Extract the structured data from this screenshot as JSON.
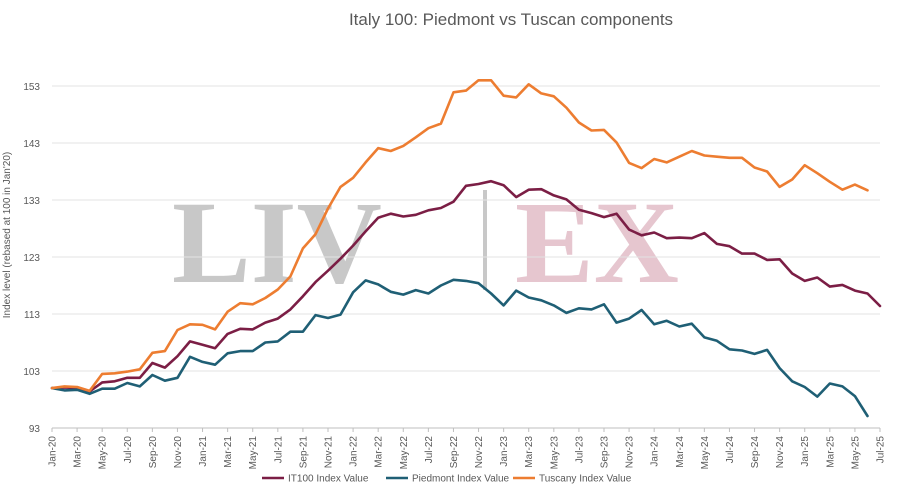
{
  "chart_data": {
    "type": "line",
    "title": "Italy 100: Piedmont vs Tuscan components",
    "ylabel": "Index level (rebased at 100 in Jan'20)",
    "xlabel": "",
    "ylim": [
      93,
      153
    ],
    "yticks": [
      93,
      103,
      113,
      123,
      133,
      143,
      153
    ],
    "xlim": [
      "Jan-20",
      "Jul-25"
    ],
    "xticks": [
      "Jan-20",
      "Mar-20",
      "May-20",
      "Jul-20",
      "Sep-20",
      "Nov-20",
      "Jan-21",
      "Mar-21",
      "May-21",
      "Jul-21",
      "Sep-21",
      "Nov-21",
      "Jan-22",
      "Mar-22",
      "May-22",
      "Jul-22",
      "Sep-22",
      "Nov-22",
      "Jan-23",
      "Mar-23",
      "May-23",
      "Jul-23",
      "Sep-23",
      "Nov-23",
      "Jan-24",
      "Mar-24",
      "May-24",
      "Jul-24",
      "Sep-24",
      "Nov-24",
      "Jan-25",
      "Mar-25",
      "May-25",
      "Jul-25"
    ],
    "grid": "horizontal",
    "legend_position": "bottom",
    "watermark": [
      "LIV",
      "EX"
    ],
    "series": [
      {
        "name": "IT100 Index Value",
        "color": "#7b1e45",
        "values": [
          100,
          100.1,
          100,
          99.4,
          101,
          101.2,
          101.8,
          101.8,
          104.4,
          103.6,
          105.6,
          108.2,
          107.6,
          107,
          109.5,
          110.4,
          110.3,
          111.5,
          112.2,
          113.8,
          116.1,
          118.6,
          120.6,
          122.7,
          125,
          127.5,
          129.9,
          130.6,
          130.1,
          130.4,
          131.2,
          131.6,
          132.7,
          135.5,
          135.8,
          136.3,
          135.6,
          133.5,
          134.8,
          134.9,
          133.8,
          133.1,
          131.3,
          130.7,
          130,
          130.6,
          127.8,
          126.8,
          127.3,
          126.3,
          126.4,
          126.3,
          127.2,
          125.3,
          124.9,
          123.6,
          123.6,
          122.5,
          122.6,
          120.1,
          118.8,
          119.4,
          117.8,
          118.1,
          117.1,
          116.6,
          114.4
        ]
      },
      {
        "name": "Piedmont Index Value",
        "color": "#1f5f75",
        "values": [
          100,
          99.6,
          99.7,
          99,
          99.9,
          99.9,
          100.9,
          100.3,
          102.3,
          101.3,
          101.8,
          105.5,
          104.6,
          104.1,
          106.1,
          106.5,
          106.5,
          108,
          108.2,
          109.9,
          109.9,
          112.8,
          112.3,
          112.9,
          116.8,
          118.9,
          118.2,
          116.9,
          116.4,
          117.2,
          116.6,
          118,
          119,
          118.8,
          118.4,
          116.6,
          114.5,
          117.1,
          115.9,
          115.4,
          114.5,
          113.2,
          114,
          113.8,
          114.7,
          111.5,
          112.2,
          113.7,
          111.2,
          111.8,
          110.8,
          111.3,
          108.9,
          108.3,
          106.8,
          106.6,
          106,
          106.7,
          103.5,
          101.2,
          100.2,
          98.5,
          100.8,
          100.3,
          98.6,
          95.1
        ]
      },
      {
        "name": "Tuscany Index Value",
        "color": "#ed7d31",
        "values": [
          100,
          100.3,
          100.2,
          99.5,
          102.5,
          102.6,
          102.9,
          103.3,
          106.2,
          106.5,
          110.2,
          111.2,
          111.1,
          110.3,
          113.4,
          114.9,
          114.7,
          115.8,
          117.3,
          119.6,
          124.5,
          127,
          131.5,
          135.3,
          136.9,
          139.6,
          142.1,
          141.6,
          142.5,
          144,
          145.6,
          146.4,
          151.9,
          152.2,
          154,
          154,
          151.3,
          151,
          153.3,
          151.7,
          151.2,
          149.2,
          146.6,
          145.2,
          145.3,
          143.1,
          139.5,
          138.6,
          140.2,
          139.6,
          140.6,
          141.6,
          140.8,
          140.6,
          140.4,
          140.4,
          138.7,
          138,
          135.3,
          136.6,
          139.1,
          137.7,
          136.2,
          134.8,
          135.7,
          134.7
        ]
      }
    ]
  }
}
